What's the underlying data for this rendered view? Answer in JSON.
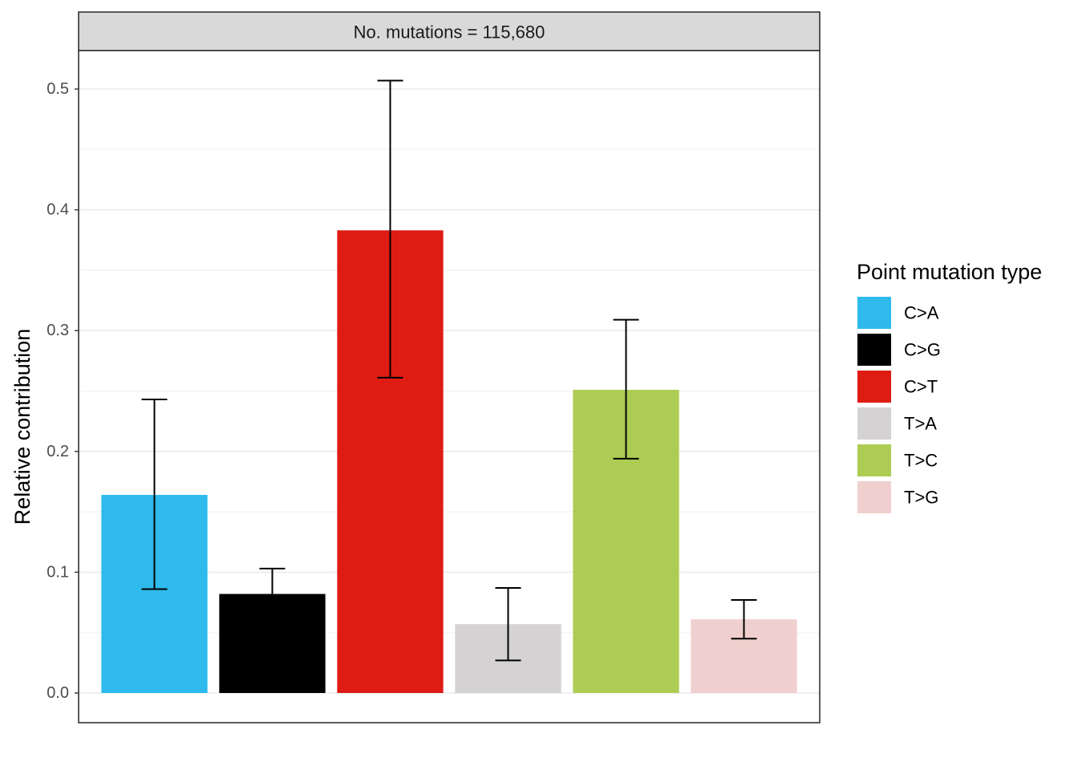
{
  "chart_data": {
    "type": "bar",
    "facet_label": "No. mutations = 115,680",
    "categories": [
      "C>A",
      "C>G",
      "C>T",
      "T>A",
      "T>C",
      "T>G"
    ],
    "values": [
      0.164,
      0.082,
      0.383,
      0.057,
      0.251,
      0.061
    ],
    "error_lower": [
      0.086,
      0.103,
      0.261,
      0.027,
      0.194,
      0.045
    ],
    "error_upper": [
      0.243,
      0.103,
      0.507,
      0.087,
      0.309,
      0.077
    ],
    "error_lower_fix": [
      0.086,
      0.061,
      0.261,
      0.027,
      0.194,
      0.045
    ],
    "colors": [
      "#2EBAED",
      "#000000",
      "#DE1C14",
      "#D4D2D2",
      "#ADCC54",
      "#F0D0CE"
    ],
    "xlabel": "",
    "ylabel": "Relative contribution",
    "ylim": [
      -0.025,
      0.53
    ],
    "yticks": [
      0.0,
      0.1,
      0.2,
      0.3,
      0.4,
      0.5
    ],
    "ytick_labels": [
      "0.0",
      "0.1",
      "0.2",
      "0.3",
      "0.4",
      "0.5"
    ],
    "grid": true,
    "legend_title": "Point mutation type",
    "legend_position": "right"
  }
}
